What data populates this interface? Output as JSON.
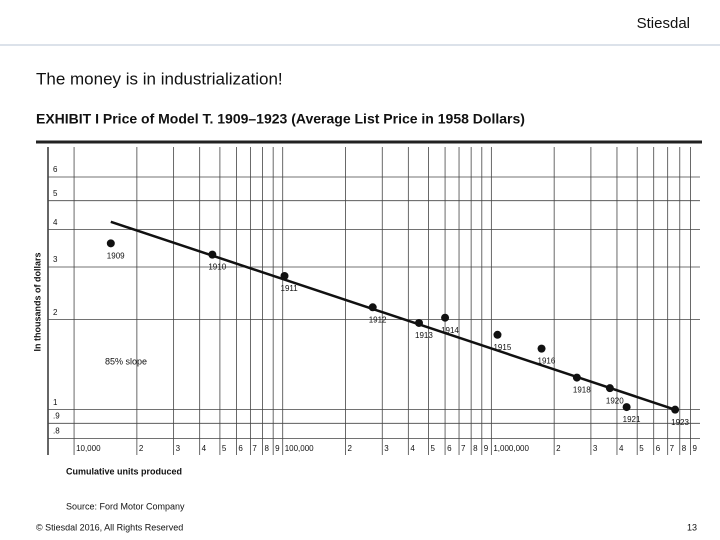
{
  "slide": {
    "brand": "Stiesdal",
    "heading": "The money is in industrialization!",
    "source": "Source:  Ford Motor Company",
    "footer": "© Stiesdal 2016, All Rights Reserved",
    "page": "13"
  },
  "chart_data": {
    "type": "scatter",
    "title": "EXHIBIT I   Price of Model T. 1909–1923 (Average List Price in 1958 Dollars)",
    "y_label": "In thousands of dollars",
    "x_label": "Cumulative units produced",
    "annotation": "85% slope",
    "log_x": true,
    "log_y": true,
    "grid": true,
    "color": "#111111",
    "x": [
      15000,
      46000,
      102000,
      270000,
      450000,
      600000,
      1070000,
      1740000,
      2570000,
      3700000,
      4450000,
      7600000
    ],
    "values": [
      3.6,
      3.3,
      2.8,
      2.2,
      1.95,
      2.03,
      1.78,
      1.6,
      1.28,
      1.18,
      1.02,
      1.0
    ],
    "point_labels": [
      "1909",
      "1910",
      "1911",
      "1912",
      "1913",
      "1914",
      "1915",
      "1916",
      "1918",
      "1920",
      "1921",
      "1923"
    ],
    "trend": {
      "x": [
        15000,
        7600000
      ],
      "values": [
        4.25,
        1.0
      ]
    },
    "xlim": [
      7500,
      10000000
    ],
    "ylim": [
      0.75,
      7
    ],
    "xticks": [
      {
        "value": 10000,
        "label": "10,000"
      },
      {
        "value": 20000,
        "label": "2"
      },
      {
        "value": 30000,
        "label": "3"
      },
      {
        "value": 40000,
        "label": "4"
      },
      {
        "value": 50000,
        "label": "5"
      },
      {
        "value": 60000,
        "label": "6"
      },
      {
        "value": 70000,
        "label": "7"
      },
      {
        "value": 80000,
        "label": "8"
      },
      {
        "value": 90000,
        "label": "9"
      },
      {
        "value": 100000,
        "label": "100,000"
      },
      {
        "value": 200000,
        "label": "2"
      },
      {
        "value": 300000,
        "label": "3"
      },
      {
        "value": 400000,
        "label": "4"
      },
      {
        "value": 500000,
        "label": "5"
      },
      {
        "value": 600000,
        "label": "6"
      },
      {
        "value": 700000,
        "label": "7"
      },
      {
        "value": 800000,
        "label": "8"
      },
      {
        "value": 900000,
        "label": "9"
      },
      {
        "value": 1000000,
        "label": "1,000,000"
      },
      {
        "value": 2000000,
        "label": "2"
      },
      {
        "value": 3000000,
        "label": "3"
      },
      {
        "value": 4000000,
        "label": "4"
      },
      {
        "value": 5000000,
        "label": "5"
      },
      {
        "value": 6000000,
        "label": "6"
      },
      {
        "value": 7000000,
        "label": "7"
      },
      {
        "value": 8000000,
        "label": "8"
      },
      {
        "value": 9000000,
        "label": "9"
      }
    ],
    "yticks": [
      6,
      5,
      4,
      3,
      2,
      1,
      {
        "value": 0.9,
        "label": ".9"
      },
      {
        "value": 0.8,
        "label": ".8"
      }
    ]
  }
}
